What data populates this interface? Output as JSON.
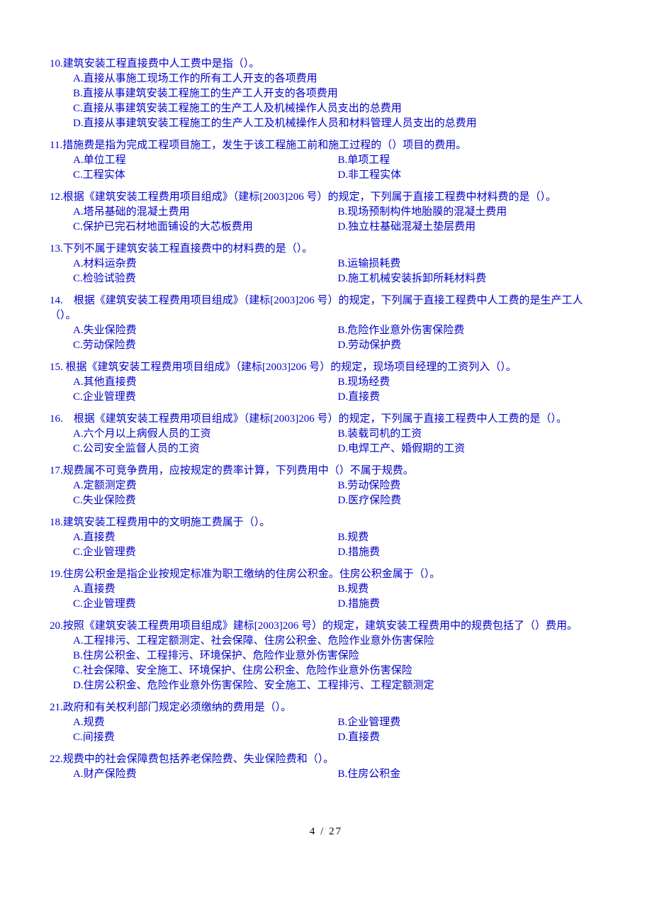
{
  "text_color": "#0000cc",
  "background_color": "#ffffff",
  "font_family": "SimSun",
  "font_size_pt": 11,
  "page_footer": "4 / 27",
  "questions": [
    {
      "number": "10",
      "stem": "10.建筑安装工程直接费中人工费中是指（）。",
      "layout": "full",
      "options": [
        "A.直接从事施工现场工作的所有工人开支的各项费用",
        "B.直接从事建筑安装工程施工的生产工人开支的各项费用",
        "C.直接从事建筑安装工程施工的生产工人及机械操作人员支出的总费用",
        "D.直接从事建筑安装工程施工的生产人工及机械操作人员和材料管理人员支出的总费用"
      ]
    },
    {
      "number": "11",
      "stem": "11.措施费是指为完成工程项目施工，发生于该工程施工前和施工过程的（）项目的费用。",
      "layout": "two",
      "options": [
        "A.单位工程",
        "B.单项工程",
        "C.工程实体",
        "D.非工程实体"
      ]
    },
    {
      "number": "12",
      "stem": "12.根据《建筑安装工程费用项目组成》（建标[2003]206 号）的规定，下列属于直接工程费中材料费的是（）。",
      "layout": "two",
      "options": [
        "A.塔吊基础的混凝土费用",
        "B.现场预制构件地胎膜的混凝土费用",
        "C.保护已完石材地面铺设的大芯板费用",
        "D.独立柱基础混凝土垫层费用"
      ]
    },
    {
      "number": "13",
      "stem": "13.下列不属于建筑安装工程直接费中的材料费的是（）。",
      "layout": "two",
      "options": [
        "A.材料运杂费",
        "B.运输损耗费",
        "C.检验试验费",
        "D.施工机械安装拆卸所耗材料费"
      ]
    },
    {
      "number": "14",
      "stem": "14.　根据《建筑安装工程费用项目组成》（建标[2003]206 号）的规定，下列属于直接工程费中人工费的是生产工人（）。",
      "layout": "two",
      "options": [
        "A.失业保险费",
        "B.危险作业意外伤害保险费",
        "C.劳动保险费",
        "D.劳动保护费"
      ]
    },
    {
      "number": "15",
      "stem": "15. 根据《建筑安装工程费用项目组成》（建标[2003]206 号）的规定，现场项目经理的工资列入（）。",
      "layout": "two",
      "options": [
        "A.其他直接费",
        "B.现场经费",
        "C.企业管理费",
        "D.直接费"
      ]
    },
    {
      "number": "16",
      "stem": "16.　根据《建筑安装工程费用项目组成》（建标[2003]206 号）的规定，下列属于直接工程费中人工费的是（）。",
      "layout": "two",
      "options": [
        "A.六个月以上病假人员的工资",
        "B.装载司机的工资",
        "C.公司安全监督人员的工资",
        "D.电焊工产、婚假期的工资"
      ]
    },
    {
      "number": "17",
      "stem": "17.规费属不可竞争费用，应按规定的费率计算，下列费用中（）不属于规费。",
      "layout": "two",
      "options": [
        "A.定额测定费",
        "B.劳动保险费",
        "C.失业保险费",
        "D.医疗保险费"
      ]
    },
    {
      "number": "18",
      "stem": "18.建筑安装工程费用中的文明施工费属于（）。",
      "layout": "two",
      "options": [
        "A.直接费",
        "B.规费",
        "C.企业管理费",
        "D.措施费"
      ]
    },
    {
      "number": "19",
      "stem": "19.住房公积金是指企业按规定标准为职工缴纳的住房公积金。住房公积金属于（）。",
      "layout": "two",
      "options": [
        "A.直接费",
        "B.规费",
        "C.企业管理费",
        "D.措施费"
      ]
    },
    {
      "number": "20",
      "stem": "20.按照《建筑安装工程费用项目组成》建标[2003]206 号）的规定，建筑安装工程费用中的规费包括了（）费用。",
      "layout": "full",
      "options": [
        "A.工程排污、工程定额测定、社会保障、住房公积金、危险作业意外伤害保险",
        "B.住房公积金、工程排污、环境保护、危险作业意外伤害保险",
        "C.社会保障、安全施工、环境保护、住房公积金、危险作业意外伤害保险",
        "D.住房公积金、危险作业意外伤害保险、安全施工、工程排污、工程定额测定"
      ]
    },
    {
      "number": "21",
      "stem": "21.政府和有关权利部门规定必须缴纳的费用是（）。",
      "layout": "two",
      "options": [
        "A.规费",
        "B.企业管理费",
        "C.间接费",
        "D.直接费"
      ]
    },
    {
      "number": "22",
      "stem": "22.规费中的社会保障费包括养老保险费、失业保险费和（）。",
      "layout": "two",
      "options": [
        "A.财产保险费",
        "B.住房公积金"
      ]
    }
  ]
}
